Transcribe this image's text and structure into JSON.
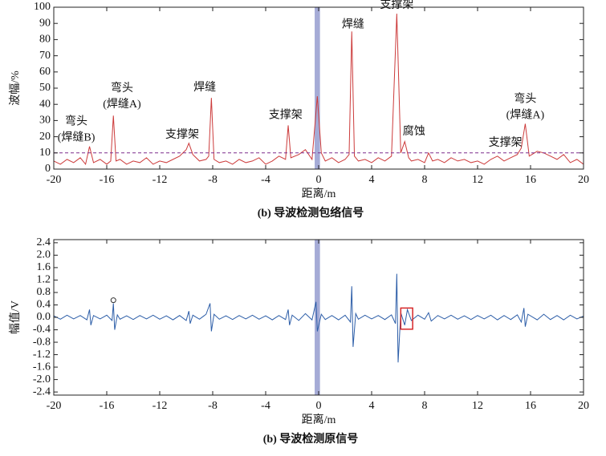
{
  "chart_data": [
    {
      "type": "line",
      "ylabel": "波幅/%",
      "xlabel": "距离/m",
      "caption": "(b) 导波检测包络信号",
      "xlim": [
        -20,
        20
      ],
      "ylim": [
        0,
        100
      ],
      "xticks": [
        -20,
        -16,
        -12,
        -8,
        -4,
        0,
        4,
        8,
        12,
        16,
        20
      ],
      "yticks": [
        0,
        10,
        20,
        30,
        40,
        50,
        60,
        70,
        80,
        90,
        100
      ],
      "threshold": 10,
      "threshold_color": "#7b2d8e",
      "highlight_x": [
        -0.3,
        0.1
      ],
      "highlight_color": "#8e96cc",
      "series": [
        {
          "color": "#cc3b3b",
          "x": [
            -20,
            -19.5,
            -19,
            -18.5,
            -18,
            -17.6,
            -17.3,
            -17,
            -16.5,
            -16,
            -15.7,
            -15.5,
            -15.3,
            -15,
            -14.5,
            -14,
            -13.5,
            -13,
            -12.5,
            -12,
            -11.5,
            -11,
            -10.5,
            -10,
            -9.8,
            -9.5,
            -9,
            -8.5,
            -8.3,
            -8.1,
            -7.9,
            -7.5,
            -7,
            -6.5,
            -6,
            -5.5,
            -5,
            -4.5,
            -4,
            -3.5,
            -3,
            -2.5,
            -2.3,
            -2.1,
            -1.5,
            -1,
            -0.5,
            -0.1,
            0.2,
            0.5,
            1,
            1.5,
            2,
            2.3,
            2.5,
            2.7,
            3,
            3.5,
            4,
            4.5,
            5,
            5.5,
            5.9,
            6.2,
            6.5,
            6.8,
            7,
            7.5,
            8,
            8.3,
            8.6,
            9,
            9.5,
            10,
            10.5,
            11,
            11.5,
            12,
            12.5,
            13,
            13.5,
            14,
            14.5,
            15,
            15.3,
            15.6,
            15.9,
            16.5,
            17,
            17.5,
            18,
            18.5,
            19,
            19.5,
            20
          ],
          "values": [
            5,
            3,
            6,
            4,
            7,
            3,
            14,
            4,
            6,
            3,
            5,
            33,
            5,
            6,
            3,
            5,
            4,
            7,
            3,
            5,
            4,
            6,
            8,
            12,
            16,
            9,
            5,
            6,
            8,
            44,
            6,
            4,
            5,
            3,
            6,
            4,
            5,
            7,
            3,
            5,
            8,
            6,
            27,
            7,
            9,
            12,
            6,
            45,
            10,
            5,
            7,
            4,
            6,
            9,
            85,
            8,
            5,
            6,
            4,
            7,
            5,
            8,
            96,
            10,
            17,
            7,
            5,
            6,
            4,
            10,
            5,
            6,
            4,
            7,
            5,
            6,
            4,
            5,
            3,
            6,
            8,
            5,
            7,
            9,
            13,
            28,
            8,
            11,
            10,
            8,
            6,
            9,
            4,
            6,
            3
          ]
        }
      ],
      "annotations": [
        {
          "x": -18.3,
          "y": 29,
          "lines": [
            "弯头",
            "(焊缝B)"
          ]
        },
        {
          "x": -14.85,
          "y": 49.5,
          "lines": [
            "弯头",
            "(焊缝A)"
          ]
        },
        {
          "x": -10.3,
          "y": 21,
          "lines": [
            "支撑架"
          ]
        },
        {
          "x": -8.6,
          "y": 50,
          "lines": [
            "焊缝"
          ]
        },
        {
          "x": -2.5,
          "y": 33,
          "lines": [
            "支撑架"
          ]
        },
        {
          "x": 2.6,
          "y": 89,
          "lines": [
            "焊缝"
          ]
        },
        {
          "x": 5.9,
          "y": 101,
          "lines": [
            "支撑架"
          ]
        },
        {
          "x": 7.2,
          "y": 23,
          "lines": [
            "腐蚀"
          ]
        },
        {
          "x": 14.1,
          "y": 16,
          "lines": [
            "支撑架"
          ]
        },
        {
          "x": 15.6,
          "y": 43,
          "lines": [
            "弯头",
            "(焊缝A)"
          ]
        }
      ]
    },
    {
      "type": "line",
      "ylabel": "幅值/V",
      "xlabel": "距离/m",
      "caption": "(b) 导波检测原信号",
      "xlim": [
        -20,
        20
      ],
      "ylim": [
        -2.5,
        2.5
      ],
      "xticks": [
        -20,
        -16,
        -12,
        -8,
        -4,
        0,
        4,
        8,
        12,
        16,
        20
      ],
      "yticks": [
        2.4,
        {
          "value": 2.0,
          "label": "2.0"
        },
        1.6,
        1.2,
        0.8,
        0.4,
        {
          "value": 0,
          "label": "0.0"
        },
        -0.4,
        -0.8,
        -1.2,
        -1.6,
        {
          "value": -2.0,
          "label": "-2.0"
        },
        -2.4
      ],
      "highlight_x": [
        -0.3,
        0.1
      ],
      "highlight_color": "#8e96cc",
      "markers": [
        {
          "x": -15.5,
          "y": 0.55
        }
      ],
      "highlight_box": {
        "x": [
          6.2,
          7.1
        ],
        "y": [
          -0.38,
          0.3
        ],
        "color": "#d62728"
      },
      "series": [
        {
          "color": "#2d5ea8",
          "x": [
            -20,
            -19.5,
            -19,
            -18.5,
            -18,
            -17.5,
            -17.3,
            -17.2,
            -17,
            -16.5,
            -16,
            -15.6,
            -15.5,
            -15.4,
            -15.2,
            -15,
            -14.5,
            -14,
            -13.5,
            -13,
            -12.5,
            -12,
            -11.5,
            -11,
            -10.5,
            -10,
            -9.8,
            -9.7,
            -9.5,
            -9,
            -8.5,
            -8.2,
            -8.1,
            -7.9,
            -7.5,
            -7,
            -6.5,
            -6,
            -5.5,
            -5,
            -4.5,
            -4,
            -3.5,
            -3,
            -2.5,
            -2.3,
            -2.2,
            -2,
            -1.5,
            -1,
            -0.5,
            -0.2,
            -0.1,
            0.2,
            0.5,
            1,
            1.5,
            2,
            2.4,
            2.5,
            2.6,
            2.8,
            3,
            3.5,
            4,
            4.5,
            5,
            5.5,
            5.8,
            5.9,
            6,
            6.2,
            6.5,
            6.7,
            7,
            7.5,
            8,
            8.3,
            8.5,
            9,
            9.5,
            10,
            10.5,
            11,
            11.5,
            12,
            12.5,
            13,
            13.5,
            14,
            14.5,
            15,
            15.3,
            15.5,
            15.6,
            15.8,
            16.5,
            17,
            17.5,
            18,
            18.5,
            19,
            19.5,
            20
          ],
          "values": [
            0.05,
            -0.06,
            0.07,
            -0.05,
            0.06,
            -0.08,
            0.25,
            -0.25,
            0.06,
            -0.05,
            0.07,
            -0.1,
            0.45,
            -0.4,
            0.08,
            -0.06,
            0.05,
            -0.07,
            0.06,
            -0.05,
            0.07,
            -0.06,
            0.05,
            -0.08,
            0.06,
            -0.1,
            0.2,
            -0.2,
            0.07,
            -0.06,
            0.1,
            0.45,
            -0.45,
            0.1,
            -0.06,
            0.05,
            -0.07,
            0.06,
            -0.05,
            0.07,
            -0.06,
            0.05,
            -0.08,
            0.06,
            -0.07,
            0.25,
            -0.25,
            0.07,
            -0.1,
            0.12,
            -0.08,
            0.5,
            -0.45,
            0.1,
            -0.07,
            0.06,
            -0.08,
            0.07,
            -0.15,
            1.0,
            -0.95,
            0.12,
            -0.06,
            0.07,
            -0.05,
            0.06,
            -0.07,
            0.08,
            -0.2,
            1.4,
            -1.45,
            0.15,
            -0.25,
            0.25,
            -0.1,
            0.07,
            -0.06,
            0.15,
            -0.12,
            0.06,
            -0.05,
            0.07,
            -0.06,
            0.05,
            -0.07,
            0.06,
            -0.05,
            0.07,
            -0.08,
            0.06,
            -0.07,
            0.08,
            -0.15,
            0.3,
            -0.3,
            0.1,
            -0.08,
            0.1,
            -0.07,
            0.06,
            -0.08,
            0.07,
            -0.05,
            0.04
          ]
        }
      ]
    }
  ]
}
